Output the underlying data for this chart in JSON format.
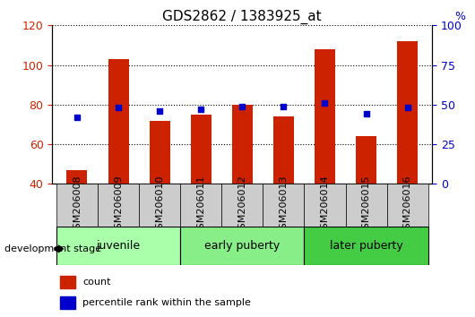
{
  "title": "GDS2862 / 1383925_at",
  "samples": [
    "GSM206008",
    "GSM206009",
    "GSM206010",
    "GSM206011",
    "GSM206012",
    "GSM206013",
    "GSM206014",
    "GSM206015",
    "GSM206016"
  ],
  "counts": [
    47,
    103,
    72,
    75,
    80,
    74,
    108,
    64,
    112
  ],
  "percentiles": [
    42,
    48,
    46,
    47,
    49,
    49,
    51,
    44,
    48
  ],
  "ylim_left": [
    40,
    120
  ],
  "ylim_right": [
    0,
    100
  ],
  "bar_color": "#cc2200",
  "dot_color": "#0000cc",
  "bar_width": 0.5,
  "groups": [
    {
      "label": "juvenile",
      "start": 0,
      "end": 2,
      "color": "#aaffaa"
    },
    {
      "label": "early puberty",
      "start": 3,
      "end": 5,
      "color": "#88ee88"
    },
    {
      "label": "later puberty",
      "start": 6,
      "end": 8,
      "color": "#44cc44"
    }
  ],
  "legend_count_label": "count",
  "legend_pct_label": "percentile rank within the sample",
  "tick_label_color_left": "#cc2200",
  "tick_label_color_right": "#0000cc",
  "title_fontsize": 11,
  "tick_fontsize": 9,
  "sample_fontsize": 8,
  "group_fontsize": 9
}
